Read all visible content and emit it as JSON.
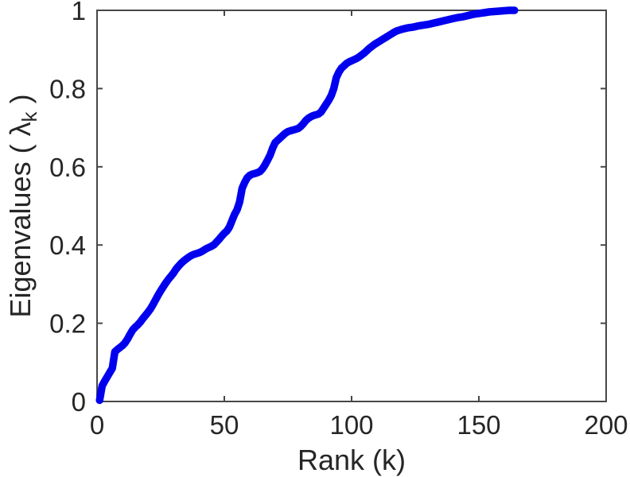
{
  "figure": {
    "background": "#ffffff",
    "axis_color": "#474747",
    "text_color": "#262626",
    "ylabel_prefix": "Eigenvalues ( λ",
    "ylabel_sub": "k",
    "ylabel_suffix": " )"
  },
  "chart_data": {
    "type": "line",
    "title": "",
    "xlabel": "Rank (k)",
    "ylabel": "Eigenvalues ( lambda_k )",
    "xlim": [
      0,
      200
    ],
    "ylim": [
      0,
      1
    ],
    "xticks": [
      0,
      50,
      100,
      150,
      200
    ],
    "xtick_labels": [
      "0",
      "50",
      "100",
      "150",
      "200"
    ],
    "yticks": [
      0,
      0.2,
      0.4,
      0.6,
      0.8,
      1
    ],
    "ytick_labels": [
      "0",
      "0.2",
      "0.4",
      "0.6",
      "0.8",
      "1"
    ],
    "grid": false,
    "legend_position": "none",
    "box": true,
    "tick_direction": "in",
    "series": [
      {
        "name": "cumulative-eigenvalue-spectrum",
        "color": "#0000EE",
        "marker": "point",
        "points": [
          [
            1,
            0.003
          ],
          [
            2,
            0.04
          ],
          [
            3,
            0.052
          ],
          [
            4,
            0.063
          ],
          [
            5,
            0.074
          ],
          [
            6,
            0.085
          ],
          [
            7,
            0.127
          ],
          [
            8,
            0.133
          ],
          [
            9,
            0.138
          ],
          [
            10,
            0.143
          ],
          [
            11,
            0.15
          ],
          [
            12,
            0.16
          ],
          [
            13,
            0.172
          ],
          [
            14,
            0.183
          ],
          [
            15,
            0.19
          ],
          [
            16,
            0.196
          ],
          [
            17,
            0.203
          ],
          [
            18,
            0.212
          ],
          [
            19,
            0.22
          ],
          [
            20,
            0.228
          ],
          [
            21,
            0.237
          ],
          [
            22,
            0.248
          ],
          [
            23,
            0.26
          ],
          [
            24,
            0.272
          ],
          [
            25,
            0.283
          ],
          [
            26,
            0.293
          ],
          [
            27,
            0.303
          ],
          [
            28,
            0.312
          ],
          [
            29,
            0.32
          ],
          [
            30,
            0.328
          ],
          [
            31,
            0.338
          ],
          [
            32,
            0.346
          ],
          [
            33,
            0.353
          ],
          [
            34,
            0.359
          ],
          [
            35,
            0.364
          ],
          [
            36,
            0.369
          ],
          [
            37,
            0.373
          ],
          [
            38,
            0.376
          ],
          [
            39,
            0.378
          ],
          [
            40,
            0.38
          ],
          [
            41,
            0.383
          ],
          [
            42,
            0.387
          ],
          [
            43,
            0.391
          ],
          [
            44,
            0.394
          ],
          [
            45,
            0.397
          ],
          [
            46,
            0.401
          ],
          [
            47,
            0.408
          ],
          [
            48,
            0.415
          ],
          [
            49,
            0.423
          ],
          [
            50,
            0.43
          ],
          [
            51,
            0.436
          ],
          [
            52,
            0.446
          ],
          [
            53,
            0.462
          ],
          [
            54,
            0.478
          ],
          [
            55,
            0.49
          ],
          [
            56,
            0.51
          ],
          [
            57,
            0.545
          ],
          [
            58,
            0.56
          ],
          [
            59,
            0.572
          ],
          [
            60,
            0.578
          ],
          [
            61,
            0.581
          ],
          [
            62,
            0.583
          ],
          [
            63,
            0.585
          ],
          [
            64,
            0.588
          ],
          [
            65,
            0.595
          ],
          [
            66,
            0.605
          ],
          [
            67,
            0.617
          ],
          [
            68,
            0.63
          ],
          [
            69,
            0.648
          ],
          [
            70,
            0.662
          ],
          [
            71,
            0.668
          ],
          [
            72,
            0.674
          ],
          [
            73,
            0.68
          ],
          [
            74,
            0.686
          ],
          [
            75,
            0.69
          ],
          [
            76,
            0.692
          ],
          [
            77,
            0.694
          ],
          [
            78,
            0.696
          ],
          [
            79,
            0.698
          ],
          [
            80,
            0.703
          ],
          [
            81,
            0.71
          ],
          [
            82,
            0.718
          ],
          [
            83,
            0.724
          ],
          [
            84,
            0.728
          ],
          [
            85,
            0.731
          ],
          [
            86,
            0.733
          ],
          [
            87,
            0.735
          ],
          [
            88,
            0.74
          ],
          [
            89,
            0.75
          ],
          [
            90,
            0.76
          ],
          [
            91,
            0.77
          ],
          [
            92,
            0.782
          ],
          [
            93,
            0.8
          ],
          [
            94,
            0.828
          ],
          [
            95,
            0.842
          ],
          [
            96,
            0.852
          ],
          [
            97,
            0.858
          ],
          [
            98,
            0.864
          ],
          [
            99,
            0.868
          ],
          [
            100,
            0.871
          ],
          [
            101,
            0.874
          ],
          [
            102,
            0.877
          ],
          [
            103,
            0.881
          ],
          [
            104,
            0.886
          ],
          [
            105,
            0.891
          ],
          [
            106,
            0.897
          ],
          [
            107,
            0.903
          ],
          [
            108,
            0.908
          ],
          [
            109,
            0.913
          ],
          [
            110,
            0.917
          ],
          [
            111,
            0.921
          ],
          [
            112,
            0.925
          ],
          [
            113,
            0.929
          ],
          [
            114,
            0.933
          ],
          [
            115,
            0.937
          ],
          [
            116,
            0.941
          ],
          [
            117,
            0.945
          ],
          [
            118,
            0.948
          ],
          [
            119,
            0.95
          ],
          [
            120,
            0.952
          ],
          [
            122,
            0.955
          ],
          [
            124,
            0.957
          ],
          [
            126,
            0.96
          ],
          [
            128,
            0.962
          ],
          [
            130,
            0.964
          ],
          [
            132,
            0.967
          ],
          [
            134,
            0.97
          ],
          [
            136,
            0.973
          ],
          [
            138,
            0.976
          ],
          [
            140,
            0.979
          ],
          [
            142,
            0.982
          ],
          [
            144,
            0.984
          ],
          [
            146,
            0.987
          ],
          [
            148,
            0.99
          ],
          [
            150,
            0.992
          ],
          [
            152,
            0.994
          ],
          [
            154,
            0.996
          ],
          [
            156,
            0.997
          ],
          [
            158,
            0.998
          ],
          [
            160,
            0.999
          ],
          [
            162,
            1.0
          ],
          [
            164,
            1.0
          ]
        ]
      }
    ]
  }
}
